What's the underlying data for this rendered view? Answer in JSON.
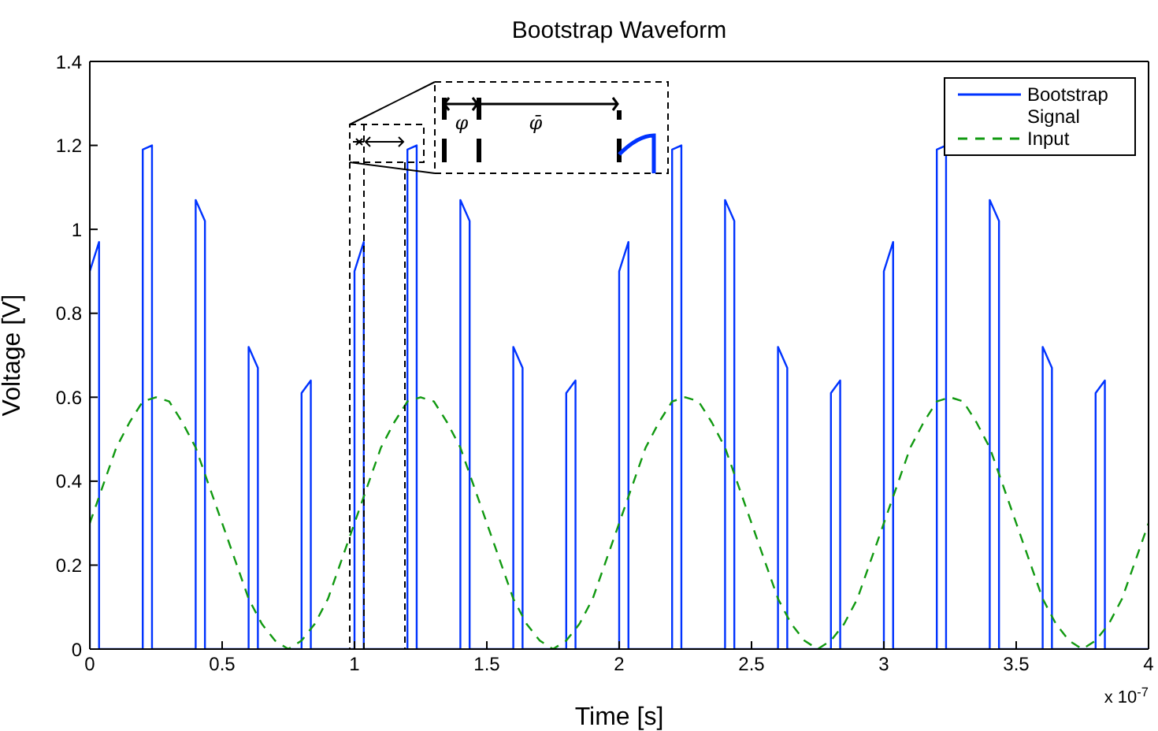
{
  "chart_data": {
    "type": "line",
    "title": "Bootstrap Waveform",
    "xlabel": "Time [s]",
    "ylabel": "Voltage [V]",
    "annotations": [
      "φ",
      "φ̄",
      "x 10$^{-7}$"
    ],
    "xlim": [
      0,
      4
    ],
    "xticks": [
      0,
      0.5,
      1,
      1.5,
      2,
      2.5,
      3,
      3.5,
      4
    ],
    "ylim": [
      0,
      1.4
    ],
    "yticks": [
      0,
      0.2,
      0.4,
      0.6,
      0.8,
      1,
      1.2,
      1.4
    ],
    "grid": false,
    "legend": "top right",
    "marker": "none",
    "series": [
      {
        "name": "Bootstrap Signal",
        "color": "#0033ff",
        "line_style": "solid",
        "x": [
          0,
          0,
          0.035,
          0.035,
          0.2,
          0.2,
          0.235,
          0.235,
          0.4,
          0.4,
          0.435,
          0.435,
          0.6,
          0.6,
          0.635,
          0.635,
          0.8,
          0.8,
          0.835,
          0.835,
          1,
          1,
          1.035,
          1.035,
          1.2,
          1.2,
          1.235,
          1.235,
          1.4,
          1.4,
          1.435,
          1.435,
          1.6,
          1.6,
          1.635,
          1.635,
          1.8,
          1.8,
          1.835,
          1.835,
          2,
          2,
          2.035,
          2.035,
          2.2,
          2.2,
          2.235,
          2.235,
          2.4,
          2.4,
          2.435,
          2.435,
          2.6,
          2.6,
          2.635,
          2.635,
          2.8,
          2.8,
          2.835,
          2.835,
          3,
          3,
          3.035,
          3.035,
          3.2,
          3.2,
          3.235,
          3.235,
          3.4,
          3.4,
          3.435,
          3.435,
          3.6,
          3.6,
          3.635,
          3.635,
          3.8,
          3.8,
          3.835,
          3.835,
          4
        ],
        "values": [
          0,
          0.9,
          0.97,
          0,
          0,
          1.19,
          1.2,
          0,
          0,
          1.07,
          1.02,
          0,
          0,
          0.72,
          0.67,
          0,
          0,
          0.61,
          0.64,
          0,
          0,
          0.9,
          0.97,
          0,
          0,
          1.19,
          1.2,
          0,
          0,
          1.07,
          1.02,
          0,
          0,
          0.72,
          0.67,
          0,
          0,
          0.61,
          0.64,
          0,
          0,
          0.9,
          0.97,
          0,
          0,
          1.19,
          1.2,
          0,
          0,
          1.07,
          1.02,
          0,
          0,
          0.72,
          0.67,
          0,
          0,
          0.61,
          0.64,
          0,
          0,
          0.9,
          0.97,
          0,
          0,
          1.19,
          1.2,
          0,
          0,
          1.07,
          1.02,
          0,
          0,
          0.72,
          0.67,
          0,
          0,
          0.61,
          0.64,
          0,
          0
        ]
      },
      {
        "name": "Input",
        "color": "#119911",
        "line_style": "dashed",
        "x": [
          0,
          0.05,
          0.1,
          0.15,
          0.2,
          0.25,
          0.3,
          0.35,
          0.4,
          0.45,
          0.5,
          0.55,
          0.6,
          0.65,
          0.7,
          0.75,
          0.8,
          0.85,
          0.9,
          0.95,
          1,
          1.05,
          1.1,
          1.15,
          1.2,
          1.25,
          1.3,
          1.35,
          1.4,
          1.45,
          1.5,
          1.55,
          1.6,
          1.65,
          1.7,
          1.75,
          1.8,
          1.85,
          1.9,
          1.95,
          2,
          2.05,
          2.1,
          2.15,
          2.2,
          2.25,
          2.3,
          2.35,
          2.4,
          2.45,
          2.5,
          2.55,
          2.6,
          2.65,
          2.7,
          2.75,
          2.8,
          2.85,
          2.9,
          2.95,
          3,
          3.05,
          3.1,
          3.15,
          3.2,
          3.25,
          3.3,
          3.35,
          3.4,
          3.45,
          3.5,
          3.55,
          3.6,
          3.65,
          3.7,
          3.75,
          3.8,
          3.85,
          3.9,
          3.95,
          4
        ],
        "values": [
          0.3,
          0.39,
          0.48,
          0.54,
          0.59,
          0.6,
          0.59,
          0.54,
          0.48,
          0.39,
          0.3,
          0.21,
          0.12,
          0.06,
          0.02,
          0,
          0.02,
          0.06,
          0.12,
          0.21,
          0.3,
          0.39,
          0.48,
          0.54,
          0.59,
          0.6,
          0.59,
          0.54,
          0.48,
          0.39,
          0.3,
          0.21,
          0.12,
          0.06,
          0.02,
          0,
          0.02,
          0.06,
          0.12,
          0.21,
          0.3,
          0.39,
          0.48,
          0.54,
          0.59,
          0.6,
          0.59,
          0.54,
          0.48,
          0.39,
          0.3,
          0.21,
          0.12,
          0.06,
          0.02,
          0,
          0.02,
          0.06,
          0.12,
          0.21,
          0.3,
          0.39,
          0.48,
          0.54,
          0.59,
          0.6,
          0.59,
          0.54,
          0.48,
          0.39,
          0.3,
          0.21,
          0.12,
          0.06,
          0.02,
          0,
          0.02,
          0.06,
          0.12,
          0.21,
          0.3
        ]
      }
    ]
  }
}
